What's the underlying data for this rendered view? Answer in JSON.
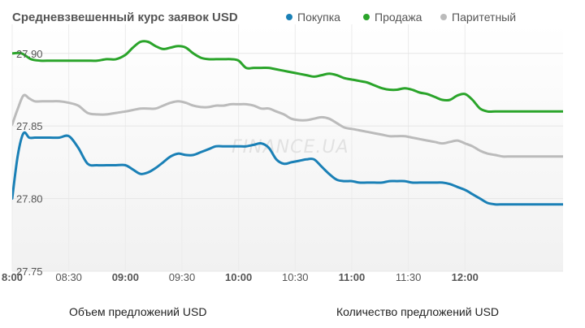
{
  "chart_data": {
    "type": "line",
    "title": "Средневзвешенный курс заявок USD",
    "watermark": "FINANCE.UA",
    "legend": [
      {
        "label": "Покупка",
        "color": "#1a80b6"
      },
      {
        "label": "Продажа",
        "color": "#2aa42a"
      },
      {
        "label": "Паритетный",
        "color": "#bbbbbb"
      }
    ],
    "ylim": [
      27.75,
      27.92
    ],
    "yticks": [
      "27.90",
      "27.85",
      "27.80",
      "27.75"
    ],
    "ytick_values": [
      27.9,
      27.85,
      27.8,
      27.75
    ],
    "xlim": [
      "8:00",
      "12:52"
    ],
    "xticks": [
      {
        "label": "8:00",
        "t": 0,
        "bold": true
      },
      {
        "label": "08:30",
        "t": 30,
        "bold": false
      },
      {
        "label": "09:00",
        "t": 60,
        "bold": true
      },
      {
        "label": "09:30",
        "t": 90,
        "bold": false
      },
      {
        "label": "10:00",
        "t": 120,
        "bold": true
      },
      {
        "label": "10:30",
        "t": 150,
        "bold": false
      },
      {
        "label": "11:00",
        "t": 180,
        "bold": true
      },
      {
        "label": "11:30",
        "t": 210,
        "bold": false
      },
      {
        "label": "12:00",
        "t": 240,
        "bold": true
      }
    ],
    "series": [
      {
        "name": "Продажа",
        "color": "#2aa42a",
        "x": [
          0,
          5,
          10,
          15,
          20,
          25,
          30,
          35,
          40,
          45,
          50,
          55,
          60,
          64,
          68,
          72,
          76,
          80,
          84,
          88,
          92,
          96,
          100,
          104,
          108,
          112,
          116,
          120,
          124,
          128,
          132,
          136,
          140,
          144,
          148,
          152,
          156,
          160,
          164,
          168,
          172,
          176,
          180,
          184,
          188,
          192,
          196,
          200,
          204,
          208,
          212,
          216,
          220,
          224,
          228,
          232,
          236,
          240,
          244,
          248,
          252,
          256,
          260,
          264,
          268,
          272,
          276,
          280,
          284,
          288,
          292
        ],
        "y": [
          27.9,
          27.9,
          27.896,
          27.895,
          27.895,
          27.895,
          27.895,
          27.895,
          27.895,
          27.895,
          27.896,
          27.896,
          27.899,
          27.904,
          27.908,
          27.908,
          27.905,
          27.903,
          27.904,
          27.905,
          27.904,
          27.9,
          27.897,
          27.896,
          27.896,
          27.896,
          27.896,
          27.895,
          27.89,
          27.89,
          27.89,
          27.89,
          27.889,
          27.888,
          27.887,
          27.886,
          27.885,
          27.884,
          27.885,
          27.886,
          27.885,
          27.883,
          27.882,
          27.881,
          27.88,
          27.878,
          27.876,
          27.875,
          27.875,
          27.876,
          27.875,
          27.873,
          27.872,
          27.87,
          27.868,
          27.868,
          27.871,
          27.872,
          27.868,
          27.862,
          27.86,
          27.86,
          27.86,
          27.86,
          27.86,
          27.86,
          27.86,
          27.86,
          27.86,
          27.86,
          27.86
        ]
      },
      {
        "name": "Паритетный",
        "color": "#bbbbbb",
        "x": [
          0,
          3,
          6,
          9,
          12,
          16,
          20,
          25,
          30,
          35,
          40,
          45,
          50,
          55,
          60,
          64,
          68,
          72,
          76,
          80,
          84,
          88,
          92,
          96,
          100,
          104,
          108,
          112,
          116,
          120,
          124,
          128,
          132,
          136,
          140,
          144,
          148,
          152,
          156,
          160,
          164,
          168,
          172,
          176,
          180,
          184,
          188,
          192,
          196,
          200,
          204,
          208,
          212,
          216,
          220,
          224,
          228,
          232,
          236,
          240,
          244,
          248,
          252,
          256,
          260,
          264,
          268,
          272,
          276,
          280,
          284,
          288,
          292
        ],
        "y": [
          27.851,
          27.862,
          27.871,
          27.869,
          27.867,
          27.867,
          27.867,
          27.867,
          27.866,
          27.864,
          27.859,
          27.858,
          27.858,
          27.859,
          27.86,
          27.861,
          27.862,
          27.862,
          27.862,
          27.864,
          27.866,
          27.867,
          27.866,
          27.864,
          27.863,
          27.863,
          27.864,
          27.864,
          27.865,
          27.865,
          27.865,
          27.864,
          27.862,
          27.862,
          27.86,
          27.858,
          27.855,
          27.854,
          27.854,
          27.855,
          27.856,
          27.855,
          27.852,
          27.849,
          27.848,
          27.847,
          27.846,
          27.845,
          27.844,
          27.843,
          27.843,
          27.843,
          27.842,
          27.841,
          27.84,
          27.839,
          27.838,
          27.839,
          27.84,
          27.838,
          27.836,
          27.833,
          27.831,
          27.83,
          27.829,
          27.829,
          27.829,
          27.829,
          27.829,
          27.829,
          27.829,
          27.829,
          27.829
        ]
      },
      {
        "name": "Покупка",
        "color": "#1a80b6",
        "x": [
          0,
          3,
          6,
          9,
          12,
          16,
          20,
          25,
          30,
          35,
          40,
          45,
          50,
          55,
          60,
          64,
          68,
          72,
          76,
          80,
          84,
          88,
          92,
          96,
          100,
          104,
          108,
          112,
          116,
          120,
          124,
          128,
          132,
          136,
          140,
          144,
          148,
          152,
          156,
          160,
          164,
          168,
          172,
          176,
          180,
          184,
          188,
          192,
          196,
          200,
          204,
          208,
          212,
          216,
          220,
          224,
          228,
          232,
          236,
          240,
          244,
          248,
          252,
          256,
          260,
          264,
          268,
          272,
          276,
          280,
          284,
          288,
          292
        ],
        "y": [
          27.8,
          27.83,
          27.845,
          27.842,
          27.842,
          27.842,
          27.842,
          27.842,
          27.843,
          27.835,
          27.824,
          27.823,
          27.823,
          27.823,
          27.823,
          27.82,
          27.817,
          27.818,
          27.821,
          27.825,
          27.829,
          27.831,
          27.83,
          27.83,
          27.832,
          27.834,
          27.836,
          27.836,
          27.836,
          27.836,
          27.836,
          27.837,
          27.838,
          27.835,
          27.827,
          27.824,
          27.825,
          27.826,
          27.827,
          27.827,
          27.822,
          27.817,
          27.813,
          27.812,
          27.812,
          27.811,
          27.811,
          27.811,
          27.811,
          27.812,
          27.812,
          27.812,
          27.811,
          27.811,
          27.811,
          27.811,
          27.811,
          27.81,
          27.808,
          27.806,
          27.803,
          27.8,
          27.797,
          27.796,
          27.796,
          27.796,
          27.796,
          27.796,
          27.796,
          27.796,
          27.796,
          27.796,
          27.796
        ]
      }
    ]
  },
  "footer": {
    "left": "Объем предложений USD",
    "right": "Количество предложений USD"
  }
}
